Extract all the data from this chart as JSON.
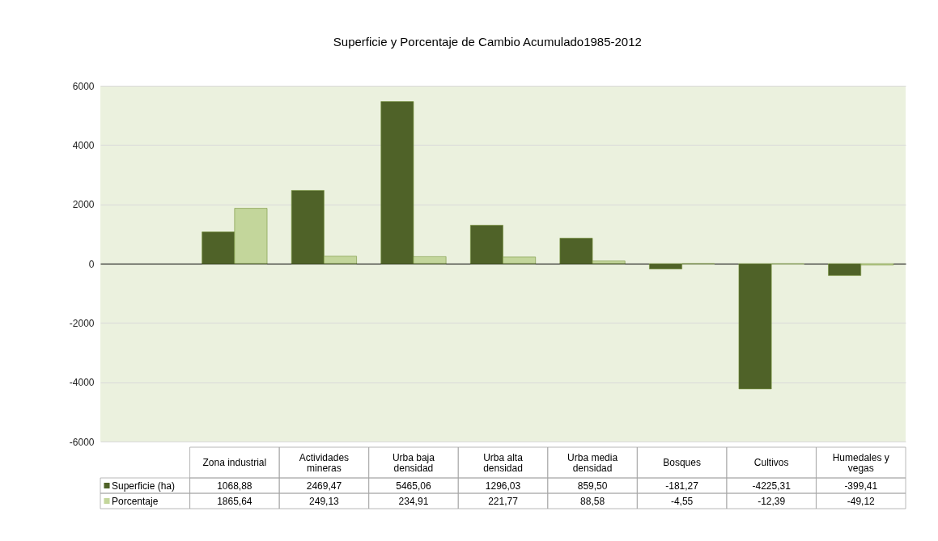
{
  "chart_data": {
    "type": "bar",
    "title": "Superficie y Porcentaje de Cambio Acumulado1985-2012",
    "categories": [
      null,
      "Zona industrial",
      "Actividades mineras",
      "Urba baja densidad",
      "Urba alta densidad",
      "Urba media densidad",
      "Bosques",
      "Cultivos",
      "Humedales y vegas"
    ],
    "series": [
      {
        "name": "Superficie (ha)",
        "color": "#4f6228",
        "values": [
          null,
          1068.88,
          2469.47,
          5465.06,
          1296.03,
          859.5,
          -181.27,
          -4225.31,
          -399.41
        ],
        "value_labels": [
          null,
          "1068,88",
          "2469,47",
          "5465,06",
          "1296,03",
          "859,50",
          "-181,27",
          "-4225,31",
          "-399,41"
        ]
      },
      {
        "name": "Porcentaje",
        "color": "#c3d69b",
        "values": [
          null,
          1865.64,
          249.13,
          234.91,
          221.77,
          88.58,
          -4.55,
          -12.39,
          -49.12
        ],
        "value_labels": [
          null,
          "1865,64",
          "249,13",
          "234,91",
          "221,77",
          "88,58",
          "-4,55",
          "-12,39",
          "-49,12"
        ]
      }
    ],
    "ylim": [
      -6000,
      6000
    ],
    "yticks": [
      -6000,
      -4000,
      -2000,
      0,
      2000,
      4000,
      6000
    ],
    "grid": "y",
    "legend": "bottom left"
  }
}
